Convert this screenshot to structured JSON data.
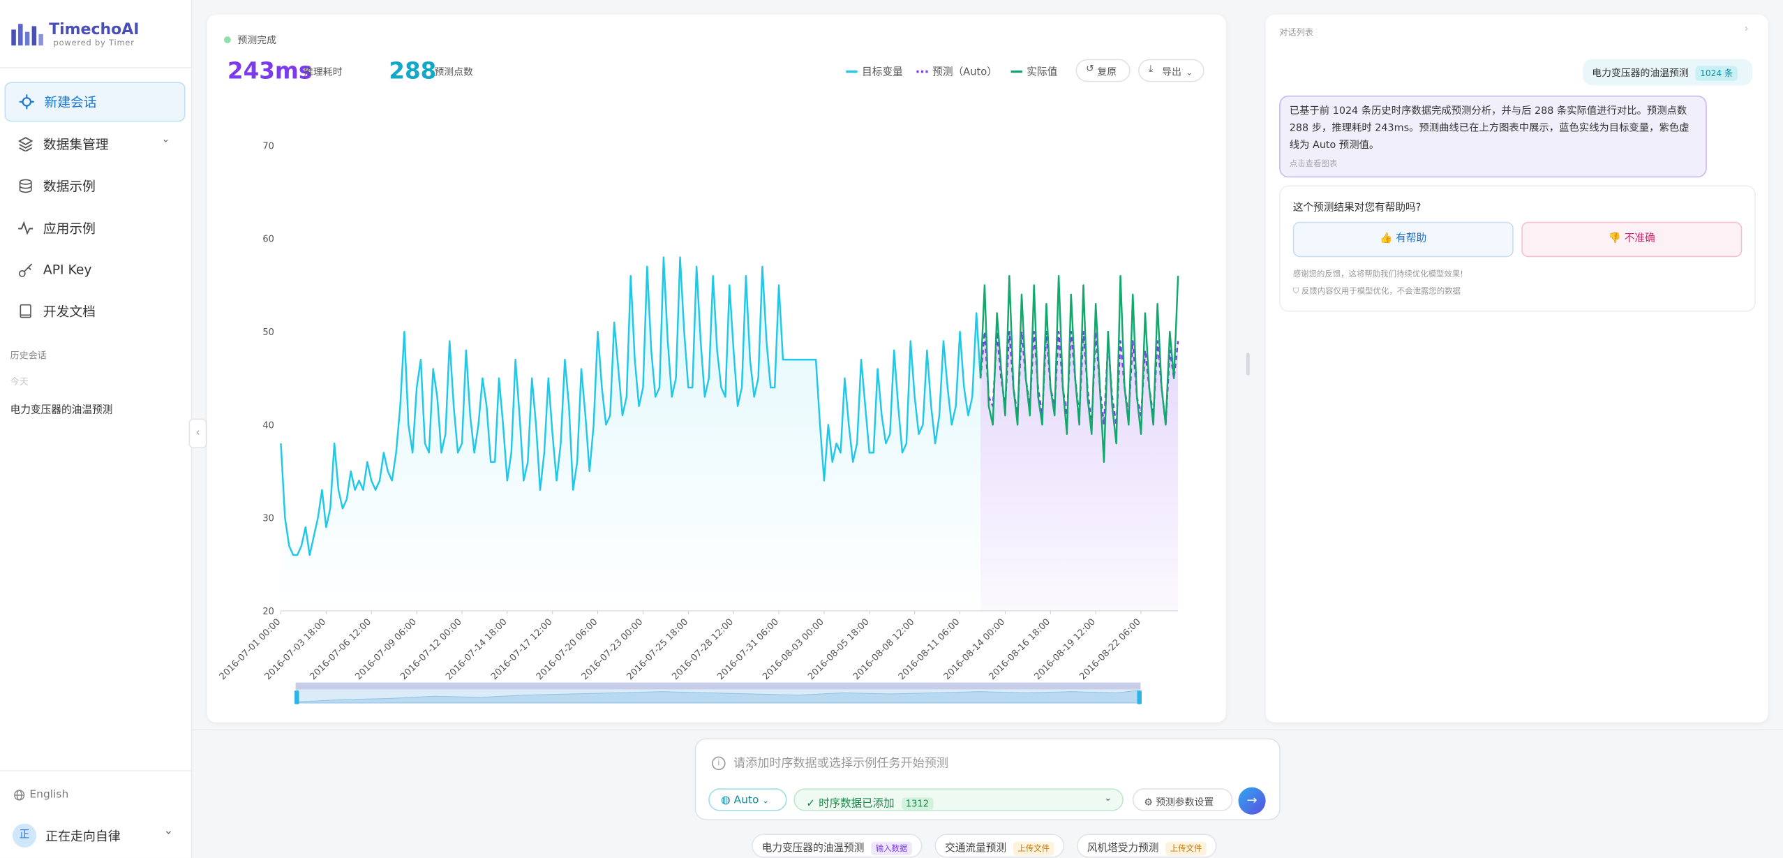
{
  "sidebar": {
    "brand": "TimechoAI",
    "tagline": "powered by Timer",
    "nav": [
      "新建会话",
      "数据集管理",
      "数据示例",
      "应用示例",
      "API Key",
      "开发文档"
    ],
    "history_title": "历史会话",
    "today": "今天",
    "history": [
      "电力变压器的油温预测"
    ],
    "language": "English",
    "avatar": "正",
    "user": "正在走向自律"
  },
  "chart_panel": {
    "status": "预测完成",
    "stats": [
      {
        "value": "243ms",
        "label": "推理耗时"
      },
      {
        "value": "288",
        "label": "预测点数"
      }
    ],
    "buttons": [
      "复原",
      "导出"
    ]
  },
  "chart_data": {
    "type": "line",
    "ylim": [
      20,
      70
    ],
    "yticks": [
      20,
      30,
      40,
      50,
      60,
      70
    ],
    "grid": false,
    "categories": [
      "2016-07-01 00:00",
      null,
      null,
      null,
      null,
      null,
      null,
      null,
      null,
      null,
      null,
      "2016-07-03 18:00",
      null,
      null,
      null,
      null,
      null,
      null,
      null,
      null,
      null,
      null,
      "2016-07-06 12:00",
      null,
      null,
      null,
      null,
      null,
      null,
      null,
      null,
      null,
      null,
      "2016-07-09 06:00",
      null,
      null,
      null,
      null,
      null,
      null,
      null,
      null,
      null,
      null,
      "2016-07-12 00:00",
      null,
      null,
      null,
      null,
      null,
      null,
      null,
      null,
      null,
      null,
      "2016-07-14 18:00",
      null,
      null,
      null,
      null,
      null,
      null,
      null,
      null,
      null,
      null,
      "2016-07-17 12:00",
      null,
      null,
      null,
      null,
      null,
      null,
      null,
      null,
      null,
      null,
      "2016-07-20 06:00",
      null,
      null,
      null,
      null,
      null,
      null,
      null,
      null,
      null,
      null,
      "2016-07-23 00:00",
      null,
      null,
      null,
      null,
      null,
      null,
      null,
      null,
      null,
      null,
      "2016-07-25 18:00",
      null,
      null,
      null,
      null,
      null,
      null,
      null,
      null,
      null,
      null,
      "2016-07-28 12:00",
      null,
      null,
      null,
      null,
      null,
      null,
      null,
      null,
      null,
      null,
      "2016-07-31 06:00",
      null,
      null,
      null,
      null,
      null,
      null,
      null,
      null,
      null,
      null,
      "2016-08-03 00:00",
      null,
      null,
      null,
      null,
      null,
      null,
      null,
      null,
      null,
      null,
      "2016-08-05 18:00",
      null,
      null,
      null,
      null,
      null,
      null,
      null,
      null,
      null,
      null,
      "2016-08-08 12:00",
      null,
      null,
      null,
      null,
      null,
      null,
      null,
      null,
      null,
      null,
      "2016-08-11 06:00",
      null,
      null,
      null,
      null,
      null,
      null,
      null,
      null,
      null,
      null,
      "2016-08-14 00:00",
      null,
      null,
      null,
      null,
      null,
      null,
      null,
      null,
      null,
      null,
      "2016-08-16 18:00",
      null,
      null,
      null,
      null,
      null,
      null,
      null,
      null,
      null,
      null,
      "2016-08-19 12:00",
      null,
      null,
      null,
      null,
      null,
      null,
      null,
      null,
      null,
      null,
      "2016-08-22 06:00",
      null,
      null,
      null,
      null,
      null,
      null,
      null,
      null,
      null
    ],
    "series": [
      {
        "name": "目标变量",
        "color": "#1ec8e8",
        "area": true,
        "values": [
          38,
          30,
          27,
          26,
          26,
          27,
          29,
          26,
          28,
          30,
          33,
          29,
          31,
          38,
          33,
          31,
          32,
          35,
          33,
          34,
          33,
          36,
          34,
          33,
          34,
          37,
          35,
          34,
          37,
          42,
          50,
          40,
          37,
          44,
          47,
          38,
          37,
          46,
          43,
          37,
          39,
          49,
          42,
          37,
          38,
          48,
          41,
          37,
          40,
          45,
          42,
          36,
          36,
          45,
          40,
          34,
          37,
          47,
          41,
          34,
          36,
          45,
          40,
          33,
          37,
          45,
          39,
          34,
          38,
          47,
          42,
          33,
          36,
          46,
          41,
          35,
          40,
          50,
          44,
          40,
          41,
          51,
          46,
          41,
          43,
          56,
          47,
          42,
          44,
          57,
          48,
          43,
          44,
          58,
          49,
          43,
          45,
          58,
          50,
          44,
          44,
          57,
          49,
          43,
          45,
          56,
          48,
          44,
          43,
          55,
          48,
          42,
          44,
          56,
          47,
          43,
          45,
          57,
          49,
          44,
          44,
          55,
          47,
          47,
          47,
          47,
          47,
          47,
          47,
          47,
          47,
          40,
          34,
          40,
          36,
          38,
          37,
          45,
          40,
          36,
          38,
          47,
          42,
          37,
          37,
          46,
          41,
          38,
          39,
          48,
          42,
          37,
          38,
          49,
          43,
          39,
          40,
          48,
          42,
          38,
          41,
          49,
          44,
          40,
          42,
          50,
          44,
          41,
          43,
          52,
          45,
          null,
          null,
          null,
          null,
          null,
          null,
          null,
          null,
          null,
          null,
          null,
          null,
          null,
          null,
          null,
          null,
          null,
          null,
          null,
          null,
          null,
          null,
          null,
          null,
          null,
          null,
          null,
          null,
          null,
          null,
          null,
          null,
          null,
          null,
          null,
          null,
          null,
          null,
          null,
          null,
          null,
          null,
          null,
          null,
          null,
          null,
          null,
          null
        ]
      },
      {
        "name": "预测（Auto）",
        "color": "#7c3aed",
        "dashed": true,
        "area": true,
        "values": [
          null,
          null,
          null,
          null,
          null,
          null,
          null,
          null,
          null,
          null,
          null,
          null,
          null,
          null,
          null,
          null,
          null,
          null,
          null,
          null,
          null,
          null,
          null,
          null,
          null,
          null,
          null,
          null,
          null,
          null,
          null,
          null,
          null,
          null,
          null,
          null,
          null,
          null,
          null,
          null,
          null,
          null,
          null,
          null,
          null,
          null,
          null,
          null,
          null,
          null,
          null,
          null,
          null,
          null,
          null,
          null,
          null,
          null,
          null,
          null,
          null,
          null,
          null,
          null,
          null,
          null,
          null,
          null,
          null,
          null,
          null,
          null,
          null,
          null,
          null,
          null,
          null,
          null,
          null,
          null,
          null,
          null,
          null,
          null,
          null,
          null,
          null,
          null,
          null,
          null,
          null,
          null,
          null,
          null,
          null,
          null,
          null,
          null,
          null,
          null,
          null,
          null,
          null,
          null,
          null,
          null,
          null,
          null,
          null,
          null,
          null,
          null,
          null,
          null,
          null,
          null,
          null,
          null,
          null,
          null,
          null,
          null,
          null,
          null,
          null,
          null,
          null,
          null,
          null,
          null,
          null,
          null,
          null,
          null,
          null,
          null,
          null,
          null,
          null,
          null,
          null,
          null,
          null,
          null,
          null,
          null,
          null,
          null,
          null,
          null,
          null,
          null,
          null,
          null,
          null,
          null,
          null,
          null,
          null,
          null,
          null,
          null,
          null,
          null,
          null,
          null,
          null,
          null,
          null,
          null,
          45,
          50,
          43,
          42,
          50,
          45,
          42,
          50,
          44,
          41,
          50,
          45,
          42,
          50,
          44,
          41,
          50,
          44,
          42,
          50,
          44,
          41,
          50,
          45,
          41,
          50,
          44,
          40,
          50,
          44,
          40,
          49,
          43,
          40,
          49,
          44,
          41,
          49,
          43,
          41,
          48,
          44,
          41,
          49,
          44,
          40,
          48,
          45,
          49
        ]
      },
      {
        "name": "实际值",
        "color": "#10a86b",
        "values": [
          null,
          null,
          null,
          null,
          null,
          null,
          null,
          null,
          null,
          null,
          null,
          null,
          null,
          null,
          null,
          null,
          null,
          null,
          null,
          null,
          null,
          null,
          null,
          null,
          null,
          null,
          null,
          null,
          null,
          null,
          null,
          null,
          null,
          null,
          null,
          null,
          null,
          null,
          null,
          null,
          null,
          null,
          null,
          null,
          null,
          null,
          null,
          null,
          null,
          null,
          null,
          null,
          null,
          null,
          null,
          null,
          null,
          null,
          null,
          null,
          null,
          null,
          null,
          null,
          null,
          null,
          null,
          null,
          null,
          null,
          null,
          null,
          null,
          null,
          null,
          null,
          null,
          null,
          null,
          null,
          null,
          null,
          null,
          null,
          null,
          null,
          null,
          null,
          null,
          null,
          null,
          null,
          null,
          null,
          null,
          null,
          null,
          null,
          null,
          null,
          null,
          null,
          null,
          null,
          null,
          null,
          null,
          null,
          null,
          null,
          null,
          null,
          null,
          null,
          null,
          null,
          null,
          null,
          null,
          null,
          null,
          null,
          null,
          null,
          null,
          null,
          null,
          null,
          null,
          null,
          null,
          null,
          null,
          null,
          null,
          null,
          null,
          null,
          null,
          null,
          null,
          null,
          null,
          null,
          null,
          null,
          null,
          null,
          null,
          null,
          null,
          null,
          null,
          null,
          null,
          null,
          null,
          null,
          null,
          null,
          null,
          null,
          null,
          null,
          null,
          null,
          null,
          null,
          null,
          null,
          45,
          55,
          42,
          40,
          52,
          46,
          41,
          56,
          44,
          40,
          54,
          45,
          41,
          55,
          43,
          40,
          53,
          44,
          41,
          56,
          44,
          39,
          54,
          45,
          40,
          55,
          43,
          39,
          53,
          44,
          36,
          50,
          42,
          38,
          56,
          44,
          40,
          54,
          43,
          39,
          52,
          44,
          40,
          53,
          44,
          40,
          50,
          45,
          56
        ]
      }
    ]
  },
  "chat": {
    "title": "对话列表",
    "user_message": "电力变压器的油温预测",
    "user_badge": "1024 条",
    "reply": "已基于前 1024 条历史时序数据完成预测分析，并与后 288 条实际值进行对比。预测点数 288 步，推理耗时 243ms。预测曲线已在上方图表中展示，蓝色实线为目标变量，紫色虚线为 Auto 预测值。",
    "reply_link": "点击查看图表",
    "feedback_question": "这个预测结果对您有帮助吗?",
    "helpful": "有帮助",
    "not_accurate": "不准确",
    "thanks": "感谢您的反馈，这将帮助我们持续优化模型效果!",
    "privacy": "反馈内容仅用于模型优化，不会泄露您的数据"
  },
  "composer": {
    "placeholder": "请添加时序数据或选择示例任务开始预测",
    "model": "Auto",
    "data_status": "时序数据已添加",
    "data_count": "1312",
    "settings": "预测参数设置",
    "examples": [
      {
        "name": "电力变压器的油温预测",
        "tag": "输入数据"
      },
      {
        "name": "交通流量预测",
        "tag": "上传文件"
      },
      {
        "name": "风机塔受力预测",
        "tag": "上传文件"
      }
    ]
  }
}
